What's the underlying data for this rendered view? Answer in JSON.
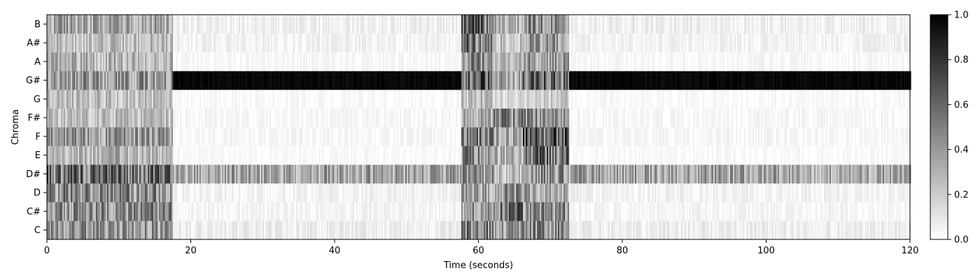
{
  "chart_data": [
    {
      "type": "heatmap",
      "title": "",
      "xlabel": "Time (seconds)",
      "ylabel": "Chroma",
      "xlim": [
        0,
        120
      ],
      "x_ticks": [
        0,
        20,
        40,
        60,
        80,
        100,
        120
      ],
      "x_tick_labels": [
        "0",
        "20",
        "40",
        "60",
        "80",
        "100",
        "120"
      ],
      "y_categories": [
        "C",
        "C#",
        "D",
        "D#",
        "E",
        "F",
        "F#",
        "G",
        "G#",
        "A",
        "A#",
        "B"
      ],
      "colormap": "gray_r",
      "low_color": "#ffffff",
      "high_color": "#000000",
      "grid": false,
      "segments": [
        {
          "start": 0,
          "end": 17.5,
          "levels": {
            "C": 0.4,
            "C#": 0.45,
            "D": 0.45,
            "D#": 0.55,
            "E": 0.3,
            "F": 0.4,
            "F#": 0.25,
            "G": 0.25,
            "G#": 0.4,
            "A": 0.3,
            "A#": 0.25,
            "B": 0.35
          }
        },
        {
          "start": 17.5,
          "end": 57.5,
          "levels": {
            "C": 0.07,
            "C#": 0.04,
            "D": 0.05,
            "D#": 0.35,
            "E": 0.02,
            "F": 0.03,
            "F#": 0.03,
            "G": 0.02,
            "G#": 0.97,
            "A": 0.03,
            "A#": 0.05,
            "B": 0.06
          }
        },
        {
          "start": 57.5,
          "end": 62,
          "levels": {
            "C": 0.5,
            "C#": 0.4,
            "D": 0.35,
            "D#": 0.4,
            "E": 0.45,
            "F": 0.5,
            "F#": 0.35,
            "G": 0.25,
            "G#": 0.6,
            "A": 0.45,
            "A#": 0.55,
            "B": 0.6
          }
        },
        {
          "start": 62,
          "end": 66,
          "levels": {
            "C": 0.45,
            "C#": 0.6,
            "D": 0.4,
            "D#": 0.25,
            "E": 0.3,
            "F": 0.35,
            "F#": 0.45,
            "G": 0.15,
            "G#": 0.35,
            "A": 0.25,
            "A#": 0.25,
            "B": 0.3
          }
        },
        {
          "start": 66,
          "end": 72.5,
          "levels": {
            "C": 0.45,
            "C#": 0.45,
            "D": 0.35,
            "D#": 0.45,
            "E": 0.55,
            "F": 0.65,
            "F#": 0.45,
            "G": 0.2,
            "G#": 0.55,
            "A": 0.4,
            "A#": 0.4,
            "B": 0.45
          }
        },
        {
          "start": 72.5,
          "end": 120,
          "levels": {
            "C": 0.07,
            "C#": 0.04,
            "D": 0.05,
            "D#": 0.35,
            "E": 0.02,
            "F": 0.03,
            "F#": 0.03,
            "G": 0.02,
            "G#": 0.97,
            "A": 0.03,
            "A#": 0.05,
            "B": 0.06
          }
        }
      ],
      "colorbar": {
        "range": [
          0.0,
          1.0
        ],
        "ticks": [
          0.0,
          0.2,
          0.4,
          0.6,
          0.8,
          1.0
        ],
        "tick_labels": [
          "0.0",
          "0.2",
          "0.4",
          "0.6",
          "0.8",
          "1.0"
        ]
      }
    }
  ]
}
